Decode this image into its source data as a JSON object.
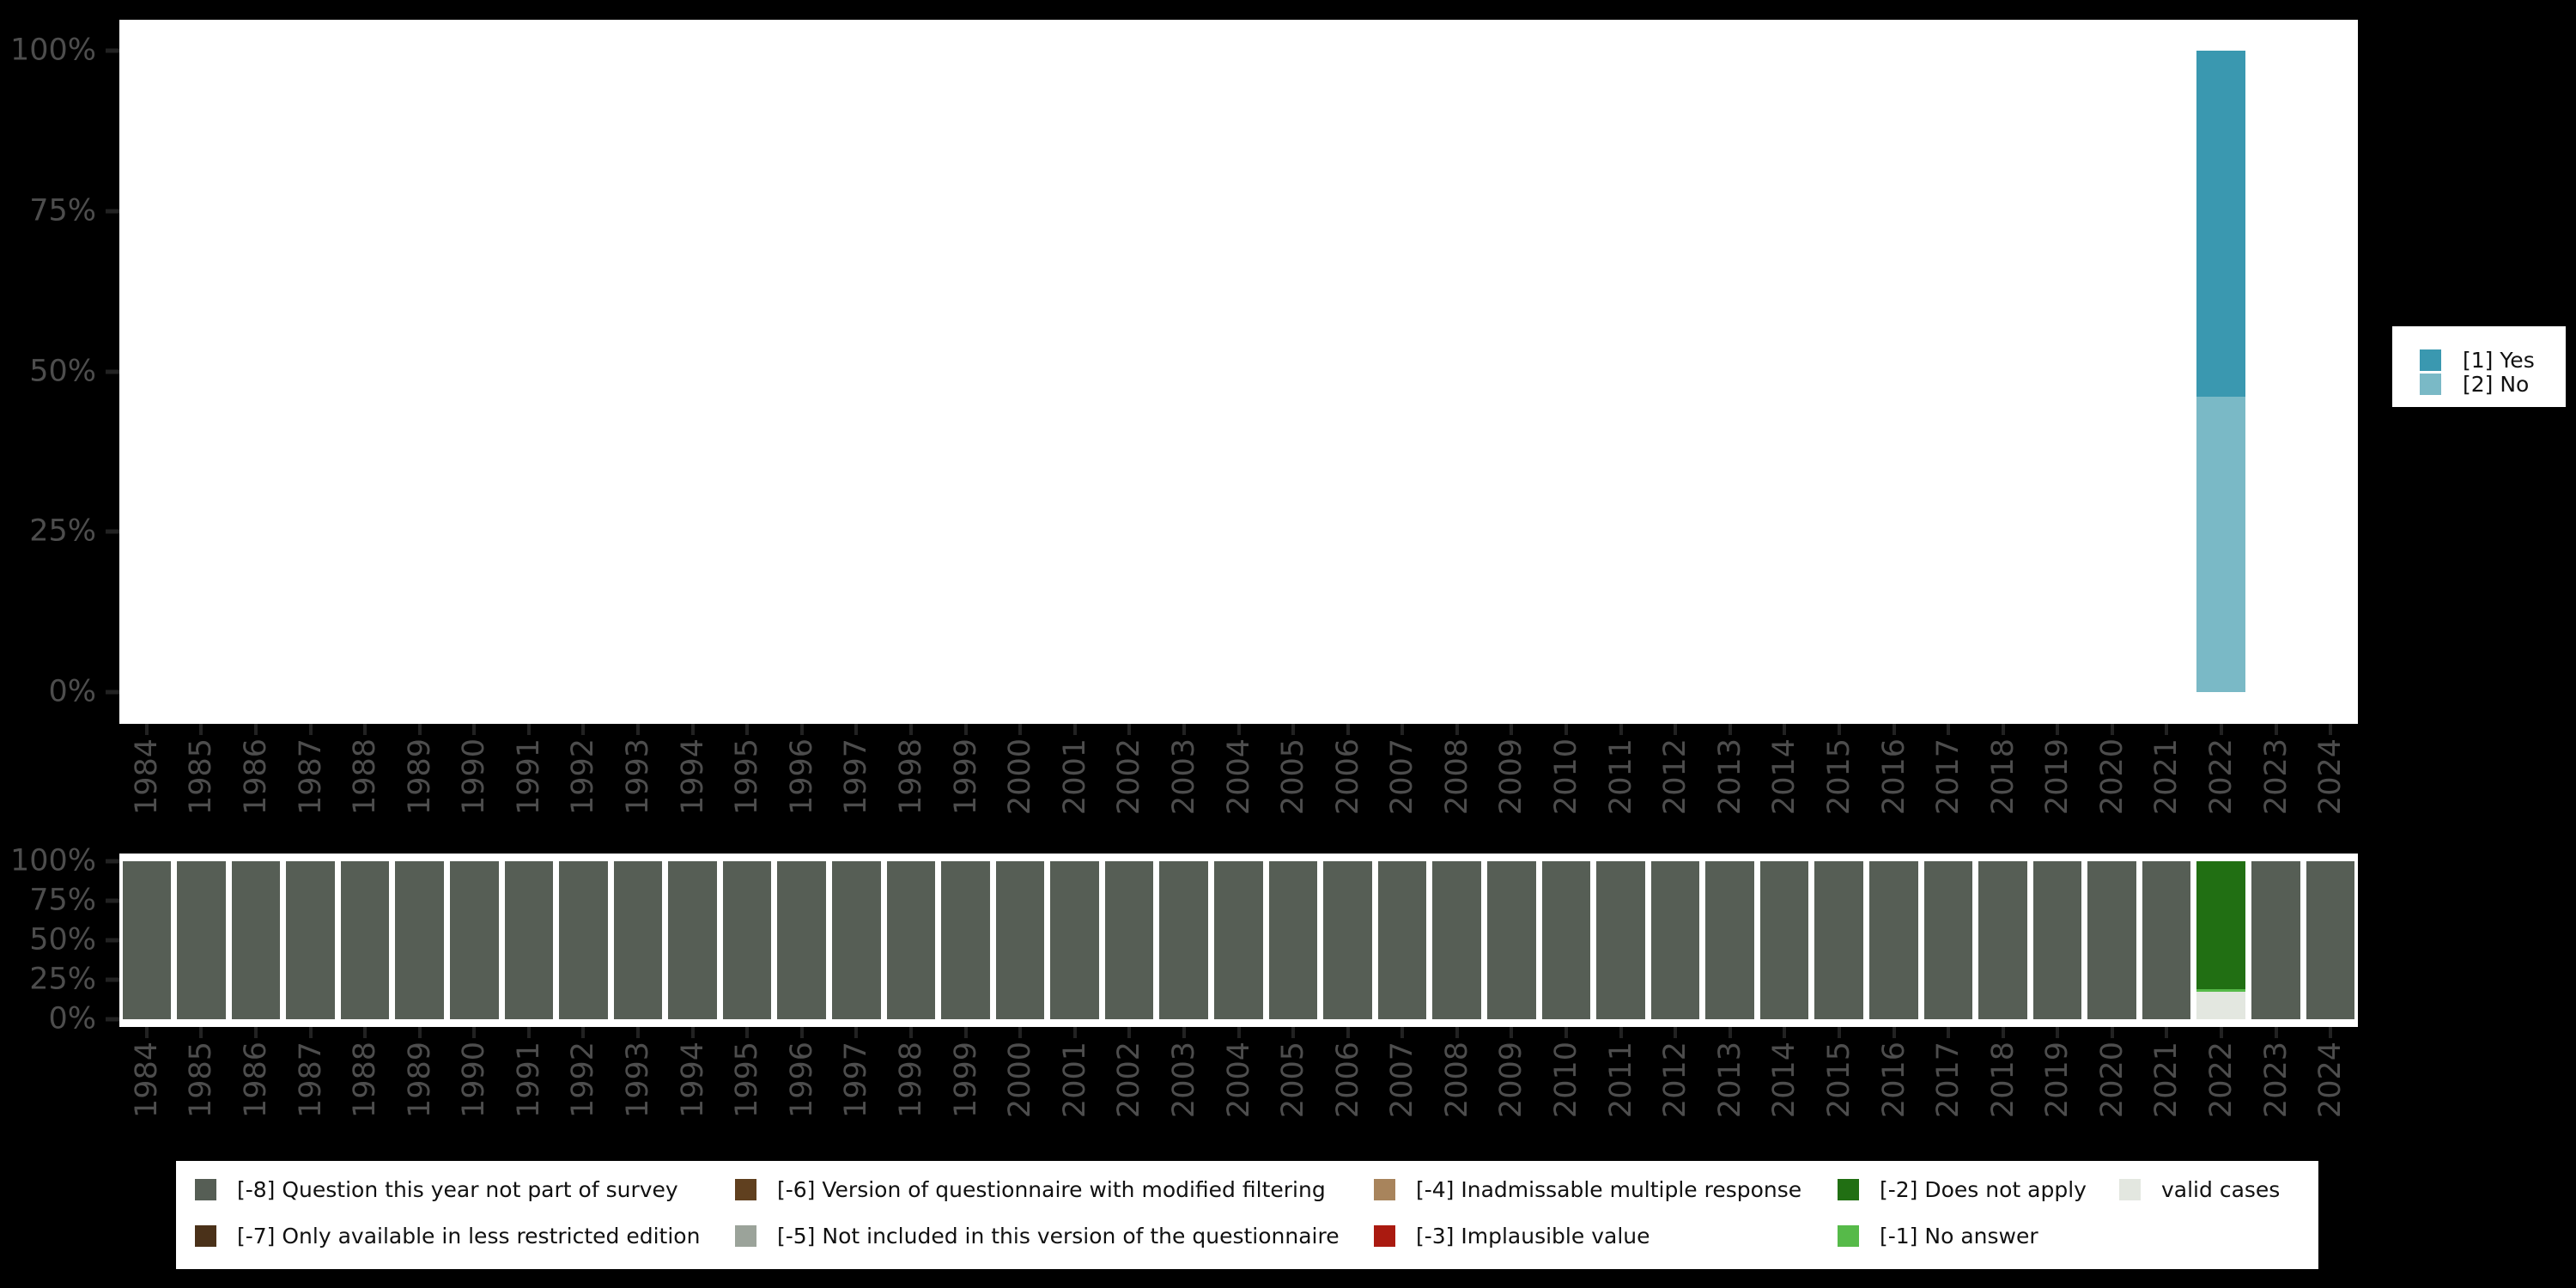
{
  "app": {
    "background": "#000000",
    "plot_background": "#ffffff",
    "axis_text_color": "#4d4d4d",
    "tick_color": "#222222",
    "legend_text_color": "#111111"
  },
  "chart_data": [
    {
      "id": "value-distribution",
      "type": "bar",
      "stacked": true,
      "orientation": "vertical",
      "unit": "percent",
      "ylim": [
        0,
        100
      ],
      "grid": false,
      "legend_position": "right",
      "yticks": [
        {
          "label": "100%",
          "value": 100
        },
        {
          "label": "75%",
          "value": 75
        },
        {
          "label": "50%",
          "value": 50
        },
        {
          "label": "25%",
          "value": 25
        },
        {
          "label": "0%",
          "value": 0
        }
      ],
      "categories": [
        "1984",
        "1985",
        "1986",
        "1987",
        "1988",
        "1989",
        "1990",
        "1991",
        "1992",
        "1993",
        "1994",
        "1995",
        "1996",
        "1997",
        "1998",
        "1999",
        "2000",
        "2001",
        "2002",
        "2003",
        "2004",
        "2005",
        "2006",
        "2007",
        "2008",
        "2009",
        "2010",
        "2011",
        "2012",
        "2013",
        "2014",
        "2015",
        "2016",
        "2017",
        "2018",
        "2019",
        "2020",
        "2021",
        "2022",
        "2023",
        "2024"
      ],
      "series": [
        {
          "name": "[1] Yes",
          "color": "#3a98b0",
          "values": [
            0,
            0,
            0,
            0,
            0,
            0,
            0,
            0,
            0,
            0,
            0,
            0,
            0,
            0,
            0,
            0,
            0,
            0,
            0,
            0,
            0,
            0,
            0,
            0,
            0,
            0,
            0,
            0,
            0,
            0,
            0,
            0,
            0,
            0,
            0,
            0,
            0,
            0,
            54,
            0,
            0
          ]
        },
        {
          "name": "[2] No",
          "color": "#7ab9c6",
          "values": [
            0,
            0,
            0,
            0,
            0,
            0,
            0,
            0,
            0,
            0,
            0,
            0,
            0,
            0,
            0,
            0,
            0,
            0,
            0,
            0,
            0,
            0,
            0,
            0,
            0,
            0,
            0,
            0,
            0,
            0,
            0,
            0,
            0,
            0,
            0,
            0,
            0,
            0,
            46,
            0,
            0
          ]
        }
      ]
    },
    {
      "id": "missing-values",
      "type": "bar",
      "stacked": true,
      "orientation": "vertical",
      "unit": "percent",
      "ylim": [
        0,
        100
      ],
      "grid": false,
      "legend_position": "bottom",
      "legend_columns": [
        [
          0,
          1
        ],
        [
          2,
          3
        ],
        [
          4,
          5
        ],
        [
          6,
          7
        ],
        [
          8
        ]
      ],
      "yticks": [
        {
          "label": "100%",
          "value": 100
        },
        {
          "label": "75%",
          "value": 75
        },
        {
          "label": "50%",
          "value": 50
        },
        {
          "label": "25%",
          "value": 25
        },
        {
          "label": "0%",
          "value": 0
        }
      ],
      "categories": [
        "1984",
        "1985",
        "1986",
        "1987",
        "1988",
        "1989",
        "1990",
        "1991",
        "1992",
        "1993",
        "1994",
        "1995",
        "1996",
        "1997",
        "1998",
        "1999",
        "2000",
        "2001",
        "2002",
        "2003",
        "2004",
        "2005",
        "2006",
        "2007",
        "2008",
        "2009",
        "2010",
        "2011",
        "2012",
        "2013",
        "2014",
        "2015",
        "2016",
        "2017",
        "2018",
        "2019",
        "2020",
        "2021",
        "2022",
        "2023",
        "2024"
      ],
      "series": [
        {
          "name": "[-8] Question this year not part of survey",
          "color": "#565e55",
          "values": [
            100,
            100,
            100,
            100,
            100,
            100,
            100,
            100,
            100,
            100,
            100,
            100,
            100,
            100,
            100,
            100,
            100,
            100,
            100,
            100,
            100,
            100,
            100,
            100,
            100,
            100,
            100,
            100,
            100,
            100,
            100,
            100,
            100,
            100,
            100,
            100,
            100,
            100,
            0,
            100,
            100
          ]
        },
        {
          "name": "[-7] Only available in less restricted edition",
          "color": "#4a3119",
          "values": [
            0,
            0,
            0,
            0,
            0,
            0,
            0,
            0,
            0,
            0,
            0,
            0,
            0,
            0,
            0,
            0,
            0,
            0,
            0,
            0,
            0,
            0,
            0,
            0,
            0,
            0,
            0,
            0,
            0,
            0,
            0,
            0,
            0,
            0,
            0,
            0,
            0,
            0,
            0,
            0,
            0
          ]
        },
        {
          "name": "[-6] Version of questionnaire with modified filtering",
          "color": "#60401f",
          "values": [
            0,
            0,
            0,
            0,
            0,
            0,
            0,
            0,
            0,
            0,
            0,
            0,
            0,
            0,
            0,
            0,
            0,
            0,
            0,
            0,
            0,
            0,
            0,
            0,
            0,
            0,
            0,
            0,
            0,
            0,
            0,
            0,
            0,
            0,
            0,
            0,
            0,
            0,
            0,
            0,
            0
          ]
        },
        {
          "name": "[-5] Not included in this version of the questionnaire",
          "color": "#9ba39a",
          "values": [
            0,
            0,
            0,
            0,
            0,
            0,
            0,
            0,
            0,
            0,
            0,
            0,
            0,
            0,
            0,
            0,
            0,
            0,
            0,
            0,
            0,
            0,
            0,
            0,
            0,
            0,
            0,
            0,
            0,
            0,
            0,
            0,
            0,
            0,
            0,
            0,
            0,
            0,
            0,
            0,
            0
          ]
        },
        {
          "name": "[-4] Inadmissable multiple response",
          "color": "#a8845c",
          "values": [
            0,
            0,
            0,
            0,
            0,
            0,
            0,
            0,
            0,
            0,
            0,
            0,
            0,
            0,
            0,
            0,
            0,
            0,
            0,
            0,
            0,
            0,
            0,
            0,
            0,
            0,
            0,
            0,
            0,
            0,
            0,
            0,
            0,
            0,
            0,
            0,
            0,
            0,
            0,
            0,
            0
          ]
        },
        {
          "name": "[-3] Implausible value",
          "color": "#aa1a10",
          "values": [
            0,
            0,
            0,
            0,
            0,
            0,
            0,
            0,
            0,
            0,
            0,
            0,
            0,
            0,
            0,
            0,
            0,
            0,
            0,
            0,
            0,
            0,
            0,
            0,
            0,
            0,
            0,
            0,
            0,
            0,
            0,
            0,
            0,
            0,
            0,
            0,
            0,
            0,
            0,
            0,
            0
          ]
        },
        {
          "name": "[-2] Does not apply",
          "color": "#216f13",
          "values": [
            0,
            0,
            0,
            0,
            0,
            0,
            0,
            0,
            0,
            0,
            0,
            0,
            0,
            0,
            0,
            0,
            0,
            0,
            0,
            0,
            0,
            0,
            0,
            0,
            0,
            0,
            0,
            0,
            0,
            0,
            0,
            0,
            0,
            0,
            0,
            0,
            0,
            0,
            81,
            0,
            0
          ]
        },
        {
          "name": "[-1] No answer",
          "color": "#56ba49",
          "values": [
            0,
            0,
            0,
            0,
            0,
            0,
            0,
            0,
            0,
            0,
            0,
            0,
            0,
            0,
            0,
            0,
            0,
            0,
            0,
            0,
            0,
            0,
            0,
            0,
            0,
            0,
            0,
            0,
            0,
            0,
            0,
            0,
            0,
            0,
            0,
            0,
            0,
            0,
            1.5,
            0,
            0
          ]
        },
        {
          "name": "valid cases",
          "color": "#e3e7e0",
          "values": [
            0,
            0,
            0,
            0,
            0,
            0,
            0,
            0,
            0,
            0,
            0,
            0,
            0,
            0,
            0,
            0,
            0,
            0,
            0,
            0,
            0,
            0,
            0,
            0,
            0,
            0,
            0,
            0,
            0,
            0,
            0,
            0,
            0,
            0,
            0,
            0,
            0,
            0,
            17.5,
            0,
            0
          ]
        }
      ]
    }
  ]
}
